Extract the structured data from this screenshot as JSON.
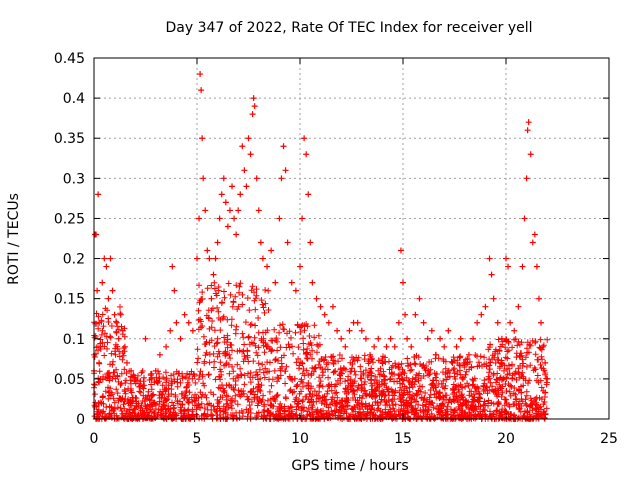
{
  "chart_data": {
    "type": "scatter",
    "title": "Day 347 of 2022, Rate Of TEC Index for receiver yell",
    "xlabel": "GPS time / hours",
    "ylabel": "ROTI / TECUs",
    "xlim": [
      0,
      25
    ],
    "ylim": [
      0,
      0.45
    ],
    "xticks": [
      0,
      5,
      10,
      15,
      20,
      25
    ],
    "yticks": [
      0,
      0.05,
      0.1,
      0.15,
      0.2,
      0.25,
      0.3,
      0.35,
      0.4,
      0.45
    ],
    "grid": true,
    "marker": "+",
    "series": [
      {
        "color": "#ff0000",
        "points": [
          [
            0.0,
            0.06
          ],
          [
            0.05,
            0.23
          ],
          [
            0.1,
            0.23
          ],
          [
            0.15,
            0.16
          ],
          [
            0.2,
            0.28
          ],
          [
            0.25,
            0.12
          ],
          [
            0.3,
            0.09
          ],
          [
            0.4,
            0.17
          ],
          [
            0.5,
            0.2
          ],
          [
            0.6,
            0.19
          ],
          [
            0.7,
            0.15
          ],
          [
            0.8,
            0.2
          ],
          [
            0.9,
            0.16
          ],
          [
            1.0,
            0.13
          ],
          [
            1.1,
            0.12
          ],
          [
            1.2,
            0.1
          ],
          [
            1.3,
            0.13
          ],
          [
            1.4,
            0.11
          ],
          [
            1.5,
            0.09
          ],
          [
            1.6,
            0.07
          ],
          [
            1.8,
            0.06
          ],
          [
            2.0,
            0.05
          ],
          [
            2.2,
            0.04
          ],
          [
            2.5,
            0.1
          ],
          [
            2.8,
            0.05
          ],
          [
            3.0,
            0.06
          ],
          [
            3.2,
            0.08
          ],
          [
            3.5,
            0.09
          ],
          [
            3.7,
            0.11
          ],
          [
            3.8,
            0.19
          ],
          [
            3.9,
            0.16
          ],
          [
            4.0,
            0.12
          ],
          [
            4.2,
            0.1
          ],
          [
            4.4,
            0.13
          ],
          [
            4.6,
            0.12
          ],
          [
            4.8,
            0.11
          ],
          [
            5.0,
            0.2
          ],
          [
            5.1,
            0.25
          ],
          [
            5.15,
            0.43
          ],
          [
            5.2,
            0.41
          ],
          [
            5.25,
            0.35
          ],
          [
            5.3,
            0.3
          ],
          [
            5.4,
            0.26
          ],
          [
            5.5,
            0.21
          ],
          [
            5.6,
            0.2
          ],
          [
            5.7,
            0.15
          ],
          [
            5.8,
            0.18
          ],
          [
            5.9,
            0.2
          ],
          [
            6.0,
            0.22
          ],
          [
            6.1,
            0.25
          ],
          [
            6.2,
            0.28
          ],
          [
            6.3,
            0.3
          ],
          [
            6.4,
            0.27
          ],
          [
            6.5,
            0.24
          ],
          [
            6.6,
            0.26
          ],
          [
            6.7,
            0.29
          ],
          [
            6.8,
            0.25
          ],
          [
            6.9,
            0.23
          ],
          [
            7.0,
            0.26
          ],
          [
            7.1,
            0.28
          ],
          [
            7.2,
            0.34
          ],
          [
            7.3,
            0.31
          ],
          [
            7.4,
            0.29
          ],
          [
            7.5,
            0.35
          ],
          [
            7.6,
            0.33
          ],
          [
            7.7,
            0.38
          ],
          [
            7.75,
            0.4
          ],
          [
            7.8,
            0.39
          ],
          [
            7.9,
            0.3
          ],
          [
            8.0,
            0.26
          ],
          [
            8.1,
            0.22
          ],
          [
            8.2,
            0.2
          ],
          [
            8.4,
            0.19
          ],
          [
            8.6,
            0.21
          ],
          [
            8.8,
            0.17
          ],
          [
            9.0,
            0.25
          ],
          [
            9.1,
            0.3
          ],
          [
            9.2,
            0.34
          ],
          [
            9.3,
            0.31
          ],
          [
            9.4,
            0.22
          ],
          [
            9.6,
            0.17
          ],
          [
            9.8,
            0.16
          ],
          [
            10.0,
            0.19
          ],
          [
            10.1,
            0.25
          ],
          [
            10.2,
            0.35
          ],
          [
            10.3,
            0.33
          ],
          [
            10.4,
            0.28
          ],
          [
            10.5,
            0.22
          ],
          [
            10.6,
            0.17
          ],
          [
            10.8,
            0.15
          ],
          [
            11.0,
            0.14
          ],
          [
            11.2,
            0.13
          ],
          [
            11.4,
            0.12
          ],
          [
            11.6,
            0.14
          ],
          [
            11.8,
            0.11
          ],
          [
            12.0,
            0.1
          ],
          [
            12.2,
            0.09
          ],
          [
            12.4,
            0.11
          ],
          [
            12.6,
            0.12
          ],
          [
            12.8,
            0.12
          ],
          [
            13.0,
            0.11
          ],
          [
            13.2,
            0.1
          ],
          [
            13.4,
            0.08
          ],
          [
            13.6,
            0.09
          ],
          [
            13.8,
            0.1
          ],
          [
            14.0,
            0.07
          ],
          [
            14.2,
            0.09
          ],
          [
            14.4,
            0.1
          ],
          [
            14.6,
            0.09
          ],
          [
            14.8,
            0.12
          ],
          [
            14.9,
            0.21
          ],
          [
            15.0,
            0.17
          ],
          [
            15.1,
            0.13
          ],
          [
            15.2,
            0.1
          ],
          [
            15.4,
            0.09
          ],
          [
            15.6,
            0.13
          ],
          [
            15.8,
            0.15
          ],
          [
            16.0,
            0.12
          ],
          [
            16.2,
            0.1
          ],
          [
            16.4,
            0.11
          ],
          [
            16.6,
            0.08
          ],
          [
            16.8,
            0.1
          ],
          [
            17.0,
            0.09
          ],
          [
            17.2,
            0.11
          ],
          [
            17.4,
            0.07
          ],
          [
            17.6,
            0.09
          ],
          [
            17.8,
            0.1
          ],
          [
            18.0,
            0.07
          ],
          [
            18.2,
            0.08
          ],
          [
            18.4,
            0.1
          ],
          [
            18.6,
            0.12
          ],
          [
            18.8,
            0.13
          ],
          [
            19.0,
            0.14
          ],
          [
            19.2,
            0.2
          ],
          [
            19.3,
            0.18
          ],
          [
            19.4,
            0.15
          ],
          [
            19.6,
            0.12
          ],
          [
            19.8,
            0.1
          ],
          [
            20.0,
            0.2
          ],
          [
            20.1,
            0.19
          ],
          [
            20.2,
            0.12
          ],
          [
            20.4,
            0.11
          ],
          [
            20.6,
            0.14
          ],
          [
            20.8,
            0.19
          ],
          [
            20.9,
            0.25
          ],
          [
            21.0,
            0.3
          ],
          [
            21.05,
            0.36
          ],
          [
            21.1,
            0.37
          ],
          [
            21.2,
            0.33
          ],
          [
            21.3,
            0.22
          ],
          [
            21.4,
            0.23
          ],
          [
            21.5,
            0.19
          ],
          [
            21.6,
            0.15
          ],
          [
            21.7,
            0.12
          ],
          [
            21.8,
            0.09
          ],
          [
            21.9,
            0.07
          ],
          [
            22.0,
            0.05
          ]
        ]
      }
    ]
  }
}
